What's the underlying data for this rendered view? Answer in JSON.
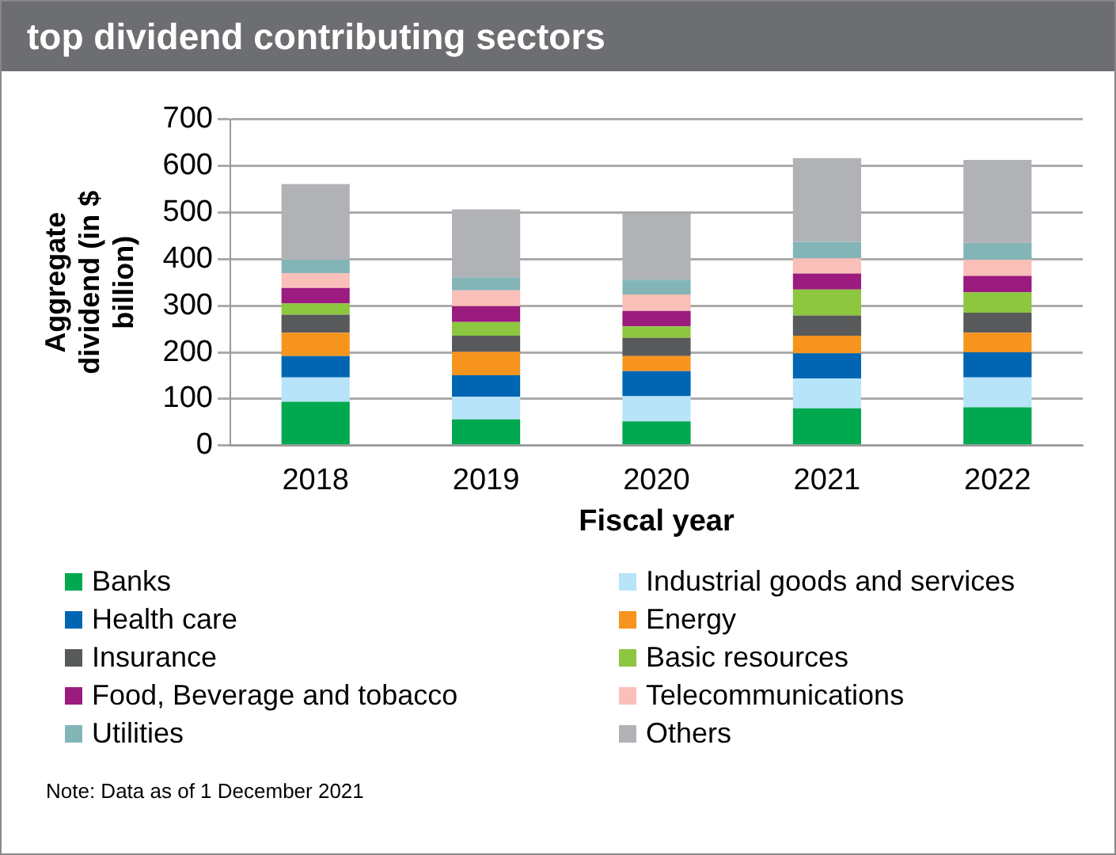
{
  "chart_data": {
    "type": "bar",
    "title": "top dividend contributing sectors",
    "categories": [
      "2018",
      "2019",
      "2020",
      "2021",
      "2022"
    ],
    "xlabel": "Fiscal year",
    "ylabel": "Aggregate dividend (in $ billion)",
    "stacked": true,
    "ylim": [
      0,
      700
    ],
    "yticks": [
      0,
      100,
      200,
      300,
      400,
      500,
      600,
      700
    ],
    "grid": "y",
    "legend": "bottom",
    "series": [
      {
        "name": "Banks",
        "color": "#00a84f",
        "values": [
          94,
          56,
          52,
          80,
          82
        ]
      },
      {
        "name": "Industrial goods and services",
        "color": "#b7e4f8",
        "values": [
          52,
          49,
          54,
          64,
          64
        ]
      },
      {
        "name": "Health care",
        "color": "#0066b3",
        "values": [
          46,
          46,
          54,
          54,
          54
        ]
      },
      {
        "name": "Energy",
        "color": "#f7941d",
        "values": [
          50,
          50,
          32,
          38,
          42
        ]
      },
      {
        "name": "Insurance",
        "color": "#58595b",
        "values": [
          39,
          35,
          39,
          43,
          43
        ]
      },
      {
        "name": "Basic resources",
        "color": "#8dc63f",
        "values": [
          24,
          29,
          25,
          56,
          44
        ]
      },
      {
        "name": "Food, Beverage and tobacco",
        "color": "#9b1b7e",
        "values": [
          33,
          34,
          33,
          34,
          35
        ]
      },
      {
        "name": "Telecommunications",
        "color": "#f9bfb8",
        "values": [
          32,
          34,
          35,
          33,
          35
        ]
      },
      {
        "name": "Utilities",
        "color": "#83b5b7",
        "values": [
          29,
          28,
          32,
          35,
          36
        ]
      },
      {
        "name": "Others",
        "color": "#b1b2b6",
        "values": [
          162,
          146,
          142,
          180,
          178
        ]
      }
    ],
    "annotations": [
      "Note: Data as of 1 December 2021"
    ]
  }
}
